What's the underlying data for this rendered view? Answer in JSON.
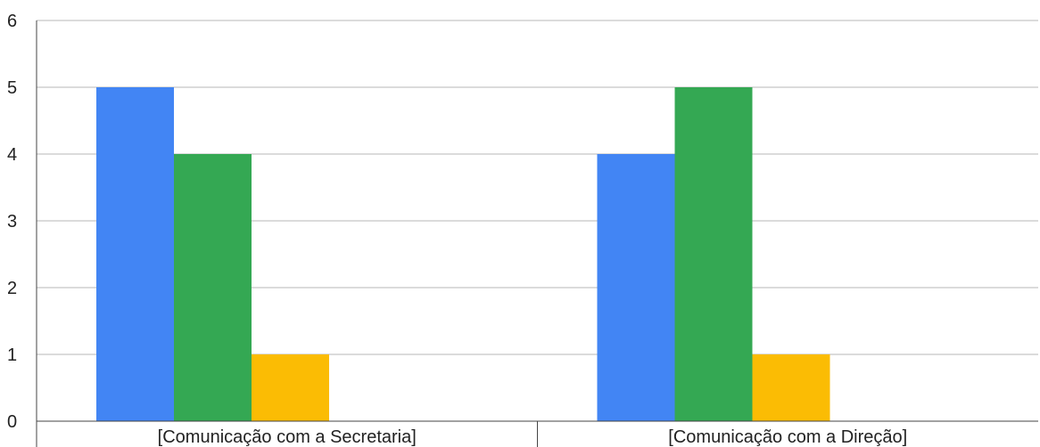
{
  "chart_data": {
    "type": "bar",
    "categories": [
      "[Comunicação com a Secretaria]",
      "[Comunicação com a Direção]"
    ],
    "series": [
      {
        "values": [
          5,
          4
        ],
        "color": "#4285f4"
      },
      {
        "values": [
          4,
          5
        ],
        "color": "#34a853"
      },
      {
        "values": [
          1,
          1
        ],
        "color": "#fbbc04"
      }
    ],
    "ylim": [
      0,
      6
    ],
    "yticks": [
      0,
      1,
      2,
      3,
      4,
      5,
      6
    ],
    "grid": true,
    "legend": "none"
  }
}
